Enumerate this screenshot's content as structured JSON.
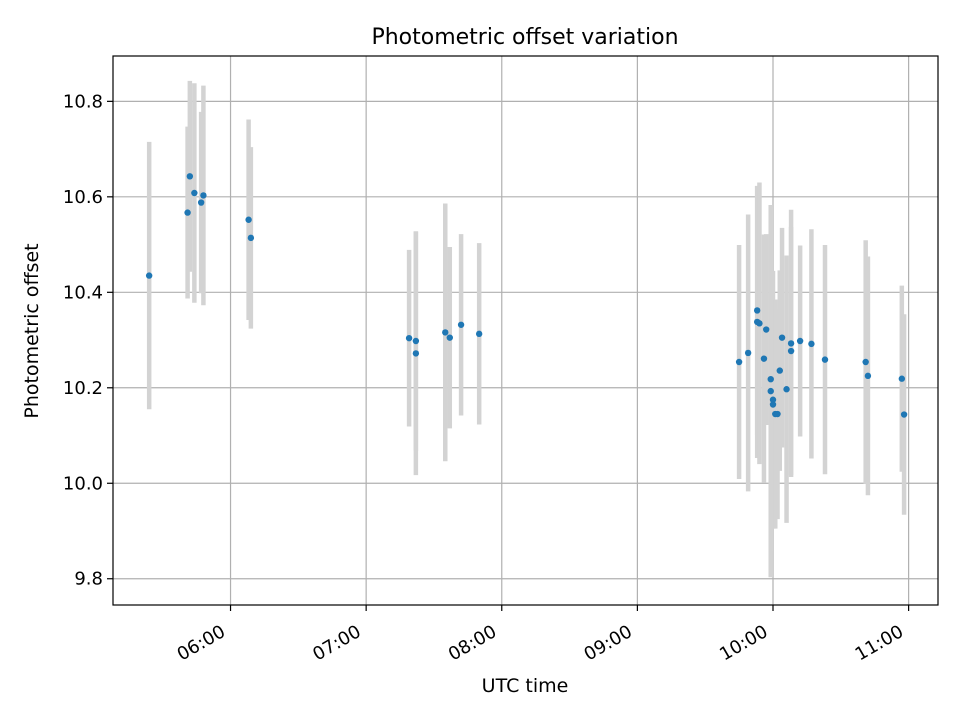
{
  "chart_data": {
    "type": "scatter",
    "title": "Photometric offset variation",
    "xlabel": "UTC time",
    "ylabel": "Photometric offset",
    "xlim": [
      "05:08",
      "11:13"
    ],
    "ylim": [
      9.745,
      10.895
    ],
    "x_ticks": [
      "06:00",
      "07:00",
      "08:00",
      "09:00",
      "10:00",
      "11:00"
    ],
    "y_ticks": [
      9.8,
      10.0,
      10.2,
      10.4,
      10.6,
      10.8
    ],
    "y_tick_labels": [
      "9.8",
      "10.0",
      "10.2",
      "10.4",
      "10.6",
      "10.8"
    ],
    "grid": true,
    "colors": {
      "point": "#1f77b4",
      "errorbar": "#d3d3d3",
      "grid": "#b0b0b0"
    },
    "points": [
      {
        "x": "05:24",
        "y": 10.435,
        "err": 0.28
      },
      {
        "x": "05:41",
        "y": 10.567,
        "err": 0.18
      },
      {
        "x": "05:42",
        "y": 10.643,
        "err": 0.2
      },
      {
        "x": "05:44",
        "y": 10.608,
        "err": 0.23
      },
      {
        "x": "05:47",
        "y": 10.588,
        "err": 0.19
      },
      {
        "x": "05:48",
        "y": 10.603,
        "err": 0.23
      },
      {
        "x": "06:08",
        "y": 10.552,
        "err": 0.21
      },
      {
        "x": "06:09",
        "y": 10.514,
        "err": 0.19
      },
      {
        "x": "07:19",
        "y": 10.304,
        "err": 0.185
      },
      {
        "x": "07:22",
        "y": 10.298,
        "err": 0.23
      },
      {
        "x": "07:22",
        "y": 10.272,
        "err": 0.255
      },
      {
        "x": "07:35",
        "y": 10.316,
        "err": 0.27
      },
      {
        "x": "07:37",
        "y": 10.305,
        "err": 0.19
      },
      {
        "x": "07:42",
        "y": 10.332,
        "err": 0.19
      },
      {
        "x": "07:50",
        "y": 10.313,
        "err": 0.19
      },
      {
        "x": "09:45",
        "y": 10.254,
        "err": 0.245
      },
      {
        "x": "09:49",
        "y": 10.273,
        "err": 0.29
      },
      {
        "x": "09:53",
        "y": 10.338,
        "err": 0.285
      },
      {
        "x": "09:53",
        "y": 10.362,
        "err": 0.26
      },
      {
        "x": "09:54",
        "y": 10.335,
        "err": 0.295
      },
      {
        "x": "09:56",
        "y": 10.261,
        "err": 0.26
      },
      {
        "x": "09:57",
        "y": 10.322,
        "err": 0.2
      },
      {
        "x": "09:59",
        "y": 10.218,
        "err": 0.36
      },
      {
        "x": "09:59",
        "y": 10.193,
        "err": 0.39
      },
      {
        "x": "10:00",
        "y": 10.175,
        "err": 0.27
      },
      {
        "x": "10:00",
        "y": 10.165,
        "err": 0.2
      },
      {
        "x": "10:01",
        "y": 10.145,
        "err": 0.24
      },
      {
        "x": "10:02",
        "y": 10.145,
        "err": 0.22
      },
      {
        "x": "10:03",
        "y": 10.236,
        "err": 0.21
      },
      {
        "x": "10:04",
        "y": 10.305,
        "err": 0.23
      },
      {
        "x": "10:06",
        "y": 10.197,
        "err": 0.28
      },
      {
        "x": "10:08",
        "y": 10.293,
        "err": 0.28
      },
      {
        "x": "10:08",
        "y": 10.277,
        "err": 0.26
      },
      {
        "x": "10:12",
        "y": 10.298,
        "err": 0.2
      },
      {
        "x": "10:17",
        "y": 10.292,
        "err": 0.24
      },
      {
        "x": "10:23",
        "y": 10.259,
        "err": 0.24
      },
      {
        "x": "10:41",
        "y": 10.254,
        "err": 0.255
      },
      {
        "x": "10:42",
        "y": 10.225,
        "err": 0.25
      },
      {
        "x": "10:57",
        "y": 10.219,
        "err": 0.195
      },
      {
        "x": "10:58",
        "y": 10.144,
        "err": 0.21
      }
    ]
  }
}
